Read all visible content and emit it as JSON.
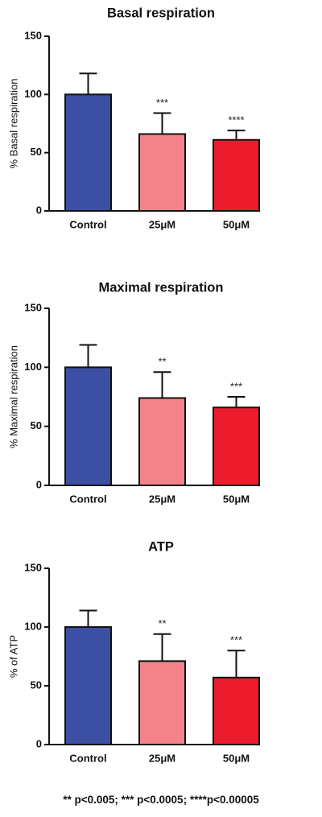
{
  "chart_data": [
    {
      "type": "bar",
      "title": "Basal respiration",
      "ylabel": "% Basal respiration",
      "categories": [
        "Control",
        "25μM",
        "50μM"
      ],
      "values": [
        100,
        66,
        61
      ],
      "errors": [
        18,
        18,
        8
      ],
      "significance": [
        "",
        "***",
        "****"
      ],
      "ylim": [
        0,
        150
      ],
      "yticks": [
        "0",
        "50",
        "100",
        "150"
      ],
      "colors": [
        "#3b4fa3",
        "#f38389",
        "#ec1c2d"
      ]
    },
    {
      "type": "bar",
      "title": "Maximal respiration",
      "ylabel": "% Maximal  respiration",
      "categories": [
        "Control",
        "25μM",
        "50μM"
      ],
      "values": [
        100,
        74,
        66
      ],
      "errors": [
        19,
        22,
        9
      ],
      "significance": [
        "",
        "**",
        "***"
      ],
      "ylim": [
        0,
        150
      ],
      "yticks": [
        "0",
        "50",
        "100",
        "150"
      ],
      "colors": [
        "#3b4fa3",
        "#f38389",
        "#ec1c2d"
      ]
    },
    {
      "type": "bar",
      "title": "ATP",
      "ylabel": "% of ATP",
      "categories": [
        "Control",
        "25μM",
        "50μM"
      ],
      "values": [
        100,
        71,
        57
      ],
      "errors": [
        14,
        23,
        23
      ],
      "significance": [
        "",
        "**",
        "***"
      ],
      "ylim": [
        0,
        150
      ],
      "yticks": [
        "0",
        "50",
        "100",
        "150"
      ],
      "colors": [
        "#3b4fa3",
        "#f38389",
        "#ec1c2d"
      ]
    }
  ],
  "footnote": "** p<0.005; *** p<0.0005; ****p<0.00005"
}
